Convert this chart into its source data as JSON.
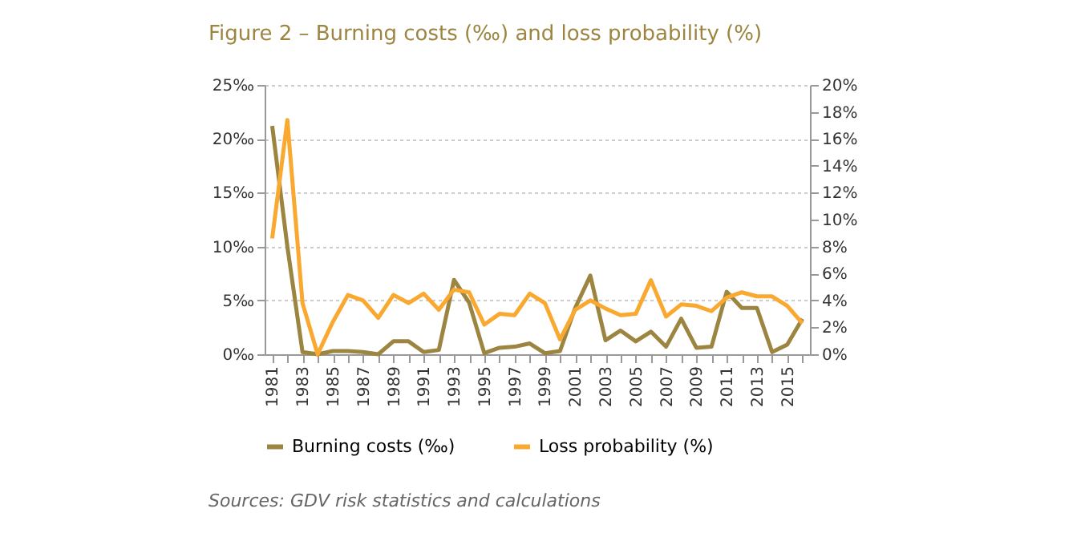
{
  "chart_data": {
    "type": "line",
    "title": "Figure 2 – Burning costs (‰) and loss probability (%)",
    "categories": [
      "1981",
      null,
      "1983",
      null,
      "1985",
      null,
      "1987",
      null,
      "1989",
      null,
      "1991",
      null,
      "1993",
      null,
      "1995",
      null,
      "1997",
      null,
      "1999",
      null,
      "2001",
      null,
      "2003",
      null,
      "2005",
      null,
      "2007",
      null,
      "2009",
      null,
      "2011",
      null,
      "2013",
      null,
      "2015",
      null
    ],
    "series": [
      {
        "name": "Burning costs (‰)",
        "color": "#9c8540",
        "values": [
          21.2,
          10,
          0.2,
          0,
          0.3,
          0.3,
          0.2,
          0,
          1.2,
          1.2,
          0.2,
          0.4,
          6.9,
          4.8,
          0.1,
          0.6,
          0.7,
          1.0,
          0.1,
          0.3,
          4.3,
          7.3,
          1.3,
          2.2,
          1.2,
          2.1,
          0.7,
          3.3,
          0.6,
          0.7,
          5.8,
          4.3,
          4.3,
          0.2,
          0.9,
          3.3
        ]
      },
      {
        "name": "Loss probability (%)",
        "color": "#f9a830",
        "axis": "y2",
        "values": [
          8.6,
          17.4,
          3.8,
          0,
          2.4,
          4.4,
          4.0,
          2.7,
          4.4,
          3.8,
          4.5,
          3.3,
          4.8,
          4.6,
          2.2,
          3.0,
          2.9,
          4.5,
          3.8,
          1.1,
          3.3,
          4.0,
          3.4,
          2.9,
          3.0,
          5.5,
          2.8,
          3.7,
          3.6,
          3.2,
          4.2,
          4.6,
          4.3,
          4.3,
          3.6,
          2.3
        ]
      }
    ],
    "ylim": [
      0,
      25
    ],
    "yticks": [
      {
        "value": 0,
        "label": "0‰"
      },
      {
        "value": 5,
        "label": "5‰"
      },
      {
        "value": 10,
        "label": "10‰"
      },
      {
        "value": 15,
        "label": "15‰"
      },
      {
        "value": 20,
        "label": "20‰"
      },
      {
        "value": 25,
        "label": "25‰"
      }
    ],
    "y2lim": [
      0,
      20
    ],
    "y2ticks": [
      {
        "value": 0,
        "label": "0%"
      },
      {
        "value": 2,
        "label": "2%"
      },
      {
        "value": 4,
        "label": "4%"
      },
      {
        "value": 6,
        "label": "6%"
      },
      {
        "value": 8,
        "label": "8%"
      },
      {
        "value": 10,
        "label": "10%"
      },
      {
        "value": 12,
        "label": "12%"
      },
      {
        "value": 14,
        "label": "14%"
      },
      {
        "value": 16,
        "label": "16%"
      },
      {
        "value": 18,
        "label": "18%"
      },
      {
        "value": 20,
        "label": "20%"
      }
    ],
    "grid": "y",
    "legend": "bottom",
    "marker": "none",
    "line_style": "solid",
    "annotations": [
      "Sources: GDV risk statistics and calculations"
    ]
  }
}
